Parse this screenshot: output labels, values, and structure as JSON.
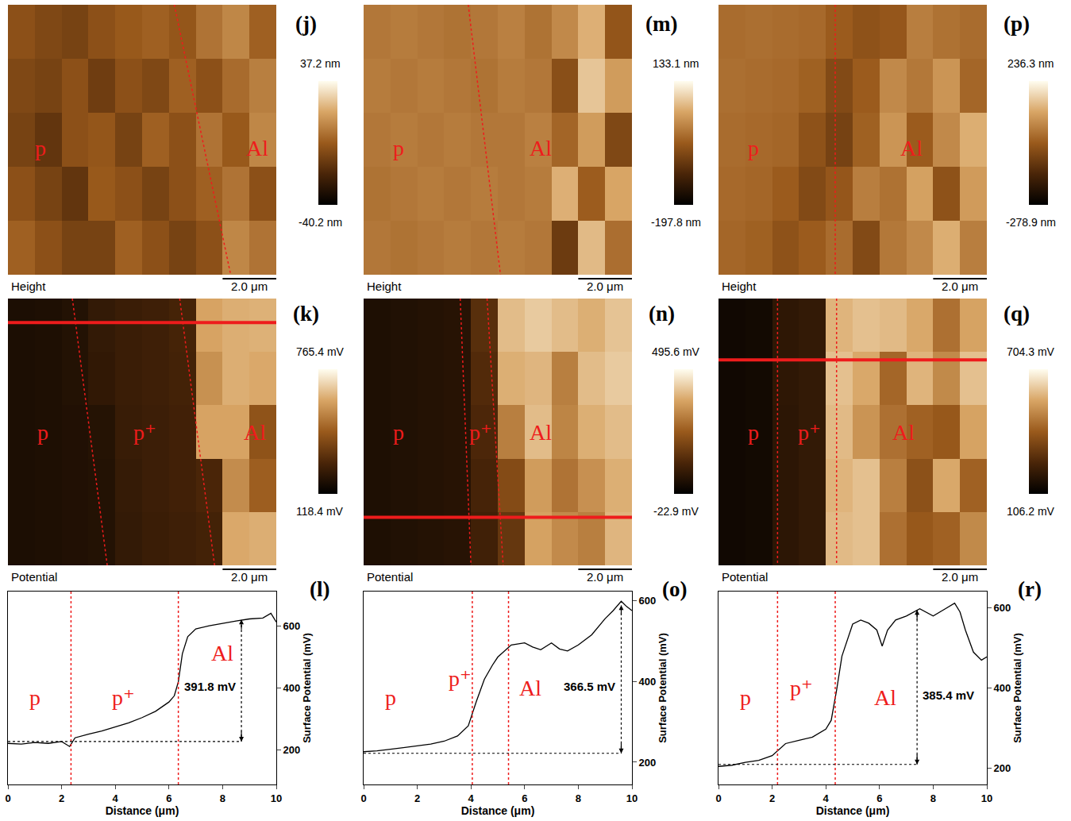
{
  "chart_data": [
    {
      "type": "heatmap",
      "panel": "(j)",
      "label": "Height",
      "x": [
        0.5,
        1.5,
        2.5,
        3.5,
        4.5,
        5.5,
        6.5,
        7.5,
        8.5,
        9.5
      ],
      "y": [
        1,
        3,
        5,
        7,
        9
      ],
      "z": [
        [
          -5,
          -8,
          -10,
          -5,
          -2,
          0,
          -3,
          5,
          10,
          0
        ],
        [
          -8,
          -10,
          -5,
          -12,
          -5,
          -8,
          0,
          -5,
          3,
          8
        ],
        [
          -10,
          -15,
          -5,
          -3,
          -10,
          0,
          -5,
          5,
          -2,
          10
        ],
        [
          -5,
          -10,
          -15,
          -2,
          -5,
          -10,
          -5,
          0,
          5,
          -5
        ],
        [
          0,
          -5,
          -10,
          -10,
          0,
          -5,
          -10,
          -5,
          10,
          5
        ]
      ],
      "xlim": [
        0,
        10
      ],
      "ylim": [
        0,
        10
      ],
      "tick_labels": false,
      "colorbar": {
        "range": [
          -40.2,
          37.2
        ],
        "ticks": [
          {
            "value": 37.2,
            "label": "37.2 nm"
          },
          {
            "value": -40.2,
            "label": "-40.2 nm"
          }
        ]
      },
      "scale_bar": {
        "length": 2.0,
        "label": "2.0 μm"
      },
      "regions": [
        "p",
        "Al"
      ],
      "boundaries": [
        [
          6.2,
          8.3
        ]
      ]
    },
    {
      "type": "heatmap",
      "panel": "(k)",
      "label": "Potential",
      "x": [
        0.5,
        1.5,
        2.5,
        3.5,
        4.5,
        5.5,
        6.5,
        7.5,
        8.5,
        9.5
      ],
      "y": [
        1,
        3,
        5,
        7,
        9
      ],
      "z": [
        [
          180,
          185,
          195,
          230,
          245,
          255,
          270,
          600,
          620,
          625
        ],
        [
          180,
          185,
          195,
          225,
          245,
          255,
          265,
          560,
          620,
          610
        ],
        [
          180,
          185,
          190,
          200,
          240,
          250,
          260,
          600,
          600,
          420
        ],
        [
          180,
          185,
          190,
          195,
          235,
          250,
          260,
          280,
          550,
          450
        ],
        [
          180,
          185,
          190,
          195,
          230,
          245,
          255,
          265,
          610,
          620
        ]
      ],
      "xlim": [
        0,
        10
      ],
      "ylim": [
        0,
        10
      ],
      "tick_labels": false,
      "colorbar": {
        "range": [
          118.4,
          765.4
        ],
        "ticks": [
          {
            "value": 765.4,
            "label": "765.4 mV"
          },
          {
            "value": 118.4,
            "label": "118.4 mV"
          }
        ]
      },
      "scale_bar": {
        "length": 2.0,
        "label": "2.0 μm"
      },
      "regions": [
        "p",
        "p⁺",
        "Al"
      ],
      "boundaries": [
        [
          2.4,
          3.7
        ],
        [
          6.4,
          7.7
        ]
      ],
      "profile_y": 0.9
    },
    {
      "type": "line",
      "panel": "(l)",
      "x": [
        0,
        0.5,
        1,
        1.5,
        2,
        2.3,
        2.5,
        3,
        3.5,
        4,
        4.5,
        5,
        5.5,
        6,
        6.2,
        6.35,
        6.5,
        6.7,
        7,
        7.5,
        8,
        8.5,
        9,
        9.5,
        9.8,
        10
      ],
      "values": [
        222,
        220,
        225,
        222,
        228,
        212,
        240,
        252,
        262,
        275,
        288,
        305,
        325,
        355,
        375,
        420,
        510,
        565,
        590,
        600,
        608,
        615,
        622,
        625,
        640,
        612
      ],
      "color": "#000000",
      "xlim": [
        0,
        10
      ],
      "xticks": [
        0,
        2,
        4,
        6,
        8,
        10
      ],
      "ylim": [
        90,
        710
      ],
      "yticks": [
        200,
        400,
        600
      ],
      "x_label": "Distance (μm)",
      "y_label": "Surface Potential (mV)",
      "regions": [
        "p",
        "p⁺",
        "Al"
      ],
      "boundaries": [
        2.35,
        6.35
      ],
      "baseline": 228,
      "arrow": {
        "x": 8.7,
        "y0": 228,
        "y1": 620,
        "label": "391.8 mV"
      }
    },
    {
      "type": "heatmap",
      "panel": "(m)",
      "label": "Height",
      "x": [
        0.5,
        1.5,
        2.5,
        3.5,
        4.5,
        5.5,
        6.5,
        7.5,
        8.5,
        9.5
      ],
      "y": [
        1,
        3,
        5,
        7,
        9
      ],
      "z": [
        [
          0,
          5,
          0,
          -5,
          0,
          10,
          -5,
          20,
          60,
          -40
        ],
        [
          5,
          0,
          5,
          0,
          -5,
          5,
          0,
          -50,
          80,
          40
        ],
        [
          0,
          5,
          0,
          5,
          0,
          0,
          10,
          -20,
          40,
          -60
        ],
        [
          -5,
          0,
          5,
          0,
          5,
          0,
          5,
          60,
          -30,
          50
        ],
        [
          0,
          -5,
          0,
          5,
          0,
          5,
          0,
          -80,
          70,
          -10
        ]
      ],
      "xlim": [
        0,
        10
      ],
      "ylim": [
        0,
        10
      ],
      "tick_labels": false,
      "colorbar": {
        "range": [
          -197.8,
          133.1
        ],
        "ticks": [
          {
            "value": 133.1,
            "label": "133.1 nm"
          },
          {
            "value": -197.8,
            "label": "-197.8 nm"
          }
        ]
      },
      "scale_bar": {
        "length": 2.0,
        "label": "2.0 μm"
      },
      "regions": [
        "p",
        "Al"
      ],
      "boundaries": [
        [
          3.9,
          5.1
        ]
      ]
    },
    {
      "type": "heatmap",
      "panel": "(n)",
      "label": "Potential",
      "x": [
        0.5,
        1.5,
        2.5,
        3.5,
        4.5,
        5.5,
        6.5,
        7.5,
        8.5,
        9.5
      ],
      "y": [
        1,
        3,
        5,
        7,
        9
      ],
      "z": [
        [
          30,
          35,
          40,
          45,
          130,
          400,
          420,
          400,
          380,
          410
        ],
        [
          30,
          35,
          40,
          45,
          120,
          380,
          390,
          300,
          400,
          420
        ],
        [
          30,
          35,
          40,
          45,
          110,
          300,
          400,
          310,
          380,
          400
        ],
        [
          30,
          35,
          40,
          45,
          100,
          200,
          350,
          280,
          330,
          380
        ],
        [
          30,
          35,
          40,
          45,
          90,
          150,
          360,
          320,
          300,
          390
        ]
      ],
      "xlim": [
        0,
        10
      ],
      "ylim": [
        0,
        10
      ],
      "tick_labels": false,
      "colorbar": {
        "range": [
          -22.9,
          495.6
        ],
        "ticks": [
          {
            "value": 495.6,
            "label": "495.6 mV"
          },
          {
            "value": -22.9,
            "label": "-22.9 mV"
          }
        ]
      },
      "scale_bar": {
        "length": 2.0,
        "label": "2.0 μm"
      },
      "regions": [
        "p",
        "p⁺",
        "Al"
      ],
      "boundaries": [
        [
          3.6,
          4.0
        ],
        [
          4.6,
          5.2
        ]
      ],
      "profile_y": 8.2
    },
    {
      "type": "line",
      "panel": "(o)",
      "x": [
        0,
        0.5,
        1,
        1.5,
        2,
        2.5,
        3,
        3.5,
        3.9,
        4.2,
        4.5,
        4.8,
        5,
        5.5,
        6,
        6.3,
        6.6,
        7,
        7.3,
        7.6,
        8,
        8.5,
        9,
        9.3,
        9.6,
        9.8,
        10
      ],
      "values": [
        226,
        228,
        232,
        236,
        240,
        245,
        252,
        265,
        290,
        350,
        405,
        440,
        460,
        490,
        495,
        485,
        478,
        495,
        480,
        475,
        490,
        515,
        555,
        575,
        598,
        585,
        575
      ],
      "color": "#000000",
      "xlim": [
        0,
        10
      ],
      "xticks": [
        0,
        2,
        4,
        6,
        8,
        10
      ],
      "ylim": [
        145,
        622
      ],
      "yticks": [
        200,
        400,
        600
      ],
      "x_label": "Distance (μm)",
      "y_label": "Surface Potential (mV)",
      "regions": [
        "p",
        "p⁺",
        "Al"
      ],
      "boundaries": [
        4.05,
        5.4
      ],
      "baseline": 222,
      "arrow": {
        "x": 9.6,
        "y0": 222,
        "y1": 588,
        "label": "366.5 mV"
      }
    },
    {
      "type": "heatmap",
      "panel": "(p)",
      "label": "Height",
      "x": [
        0.5,
        1.5,
        2.5,
        3.5,
        4.5,
        5.5,
        6.5,
        7.5,
        8.5,
        9.5
      ],
      "y": [
        1,
        3,
        5,
        7,
        9
      ],
      "z": [
        [
          10,
          15,
          10,
          5,
          -20,
          -40,
          -30,
          40,
          20,
          10
        ],
        [
          15,
          10,
          5,
          -10,
          -60,
          -20,
          60,
          30,
          80,
          0
        ],
        [
          10,
          5,
          0,
          -40,
          -80,
          -10,
          80,
          -20,
          60,
          120
        ],
        [
          5,
          0,
          -20,
          -60,
          -30,
          40,
          20,
          100,
          -40,
          90
        ],
        [
          0,
          -10,
          -40,
          -20,
          10,
          -60,
          30,
          60,
          120,
          40
        ]
      ],
      "xlim": [
        0,
        10
      ],
      "ylim": [
        0,
        10
      ],
      "tick_labels": false,
      "colorbar": {
        "range": [
          -278.9,
          236.3
        ],
        "ticks": [
          {
            "value": 236.3,
            "label": "236.3 nm"
          },
          {
            "value": -278.9,
            "label": "-278.9 nm"
          }
        ]
      },
      "scale_bar": {
        "length": 2.0,
        "label": "2.0 μm"
      },
      "regions": [
        "p",
        "Al"
      ],
      "boundaries": [
        [
          4.35,
          4.35
        ]
      ]
    },
    {
      "type": "heatmap",
      "panel": "(q)",
      "label": "Potential",
      "x": [
        0.5,
        1.5,
        2.5,
        3.5,
        4.5,
        5.5,
        6.5,
        7.5,
        8.5,
        9.5
      ],
      "y": [
        1,
        3,
        5,
        7,
        9
      ],
      "z": [
        [
          140,
          145,
          200,
          210,
          580,
          600,
          590,
          560,
          450,
          550
        ],
        [
          140,
          145,
          200,
          210,
          600,
          560,
          430,
          580,
          500,
          600
        ],
        [
          140,
          145,
          195,
          210,
          590,
          520,
          450,
          420,
          400,
          550
        ],
        [
          140,
          145,
          195,
          210,
          580,
          600,
          480,
          380,
          560,
          420
        ],
        [
          140,
          145,
          195,
          210,
          590,
          600,
          450,
          400,
          420,
          500
        ]
      ],
      "xlim": [
        0,
        10
      ],
      "ylim": [
        0,
        10
      ],
      "tick_labels": false,
      "colorbar": {
        "range": [
          106.2,
          704.3
        ],
        "ticks": [
          {
            "value": 704.3,
            "label": "704.3 mV"
          },
          {
            "value": 106.2,
            "label": "106.2 mV"
          }
        ]
      },
      "scale_bar": {
        "length": 2.0,
        "label": "2.0 μm"
      },
      "regions": [
        "p",
        "p⁺",
        "Al"
      ],
      "boundaries": [
        [
          2.2,
          2.2
        ],
        [
          4.4,
          4.4
        ]
      ],
      "profile_y": 2.3
    },
    {
      "type": "line",
      "panel": "(r)",
      "x": [
        0,
        0.5,
        1,
        1.5,
        2,
        2.5,
        3,
        3.5,
        4,
        4.2,
        4.4,
        4.6,
        5,
        5.3,
        5.6,
        5.9,
        6.1,
        6.3,
        6.6,
        7,
        7.5,
        8,
        8.5,
        8.8,
        9,
        9.2,
        9.5,
        9.8,
        10
      ],
      "values": [
        205,
        208,
        215,
        220,
        232,
        262,
        270,
        278,
        298,
        320,
        395,
        480,
        560,
        570,
        562,
        545,
        505,
        545,
        570,
        580,
        598,
        580,
        600,
        612,
        590,
        545,
        490,
        470,
        478
      ],
      "color": "#000000",
      "xlim": [
        0,
        10
      ],
      "xticks": [
        0,
        2,
        4,
        6,
        8,
        10
      ],
      "ylim": [
        160,
        641
      ],
      "yticks": [
        200,
        400,
        600
      ],
      "x_label": "Distance (μm)",
      "y_label": "Surface Potential (mV)",
      "regions": [
        "p",
        "p⁺",
        "Al"
      ],
      "boundaries": [
        2.2,
        4.35
      ],
      "baseline": 210,
      "arrow": {
        "x": 7.4,
        "y0": 210,
        "y1": 595,
        "label": "385.4 mV"
      }
    }
  ]
}
